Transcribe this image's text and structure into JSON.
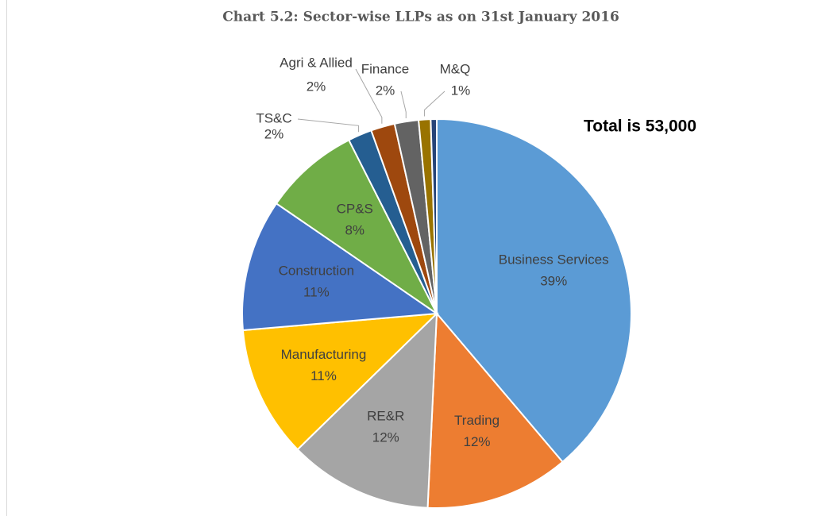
{
  "chart_data": {
    "type": "pie",
    "title": "Chart 5.2: Sector-wise LLPs as on 31st January 2016",
    "annotation": "Total is 53,000",
    "categories": [
      "Business Services",
      "Trading",
      "RE&R",
      "Manufacturing",
      "Construction",
      "CP&S",
      "TS&C",
      "Agri & Allied",
      "Finance",
      "M&Q",
      null
    ],
    "values": [
      39,
      12,
      12,
      11,
      11,
      8,
      2,
      2,
      2,
      1,
      0.5
    ],
    "value_labels": [
      "39%",
      "12%",
      "12%",
      "11%",
      "11%",
      "8%",
      "2%",
      "2%",
      "2%",
      "1%",
      null
    ],
    "colors": [
      "#5b9bd5",
      "#ed7d31",
      "#a5a5a5",
      "#ffc000",
      "#4472c4",
      "#70ad47",
      "#255e91",
      "#9e480e",
      "#636363",
      "#997300",
      "#264478"
    ]
  }
}
